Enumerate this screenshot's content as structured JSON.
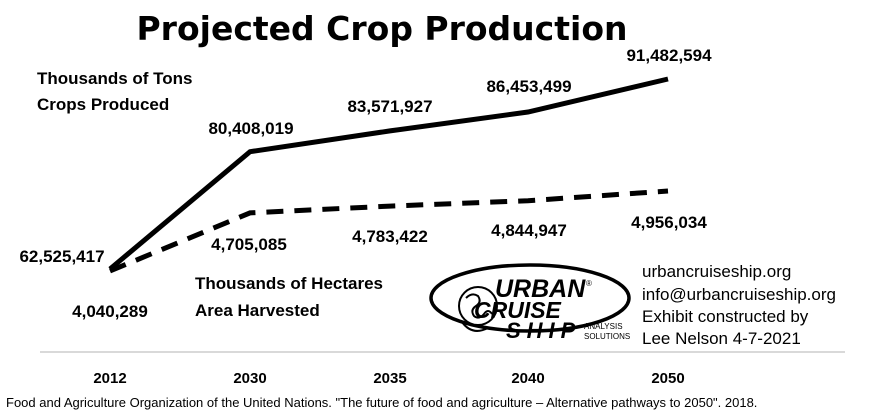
{
  "chart_data": {
    "type": "line",
    "title": "Projected Crop Production",
    "categories": [
      "2012",
      "2030",
      "2035",
      "2040",
      "2050"
    ],
    "series": [
      {
        "name": "Thousands of Tons Crops Produced",
        "name_lines": [
          "Thousands of Tons",
          "Crops Produced"
        ],
        "values": [
          62525417,
          80408019,
          83571927,
          86453499,
          91482594
        ],
        "labels": [
          "62,525,417",
          "80,408,019",
          "83,571,927",
          "86,453,499",
          "91,482,594"
        ],
        "style": "solid",
        "color": "#000000"
      },
      {
        "name": "Thousands of Hectares Area Harvested",
        "name_lines": [
          "Thousands of Hectares",
          "Area Harvested"
        ],
        "values": [
          4040289,
          4705085,
          4783422,
          4844947,
          4956034
        ],
        "labels": [
          "4,040,289",
          "4,705,085",
          "4,783,422",
          "4,844,947",
          "4,956,034"
        ],
        "style": "dashed",
        "color": "#000000"
      }
    ],
    "grid": false,
    "legend": "inline",
    "source": "Food and Agriculture Organization of the United Nations. \"The future of food and agriculture – Alternative pathways to 2050\". 2018."
  },
  "logo": {
    "line1": "URBAN",
    "line2": "CRUISE",
    "line3": "SHIP",
    "mark": "®",
    "sub1": "ANALYSIS",
    "sub2": "SOLUTIONS"
  },
  "contact": {
    "website": "urbancruiseship.org",
    "email": "info@urbancruiseship.org",
    "credit1": "Exhibit constructed by",
    "credit2": "Lee Nelson 4-7-2021"
  }
}
